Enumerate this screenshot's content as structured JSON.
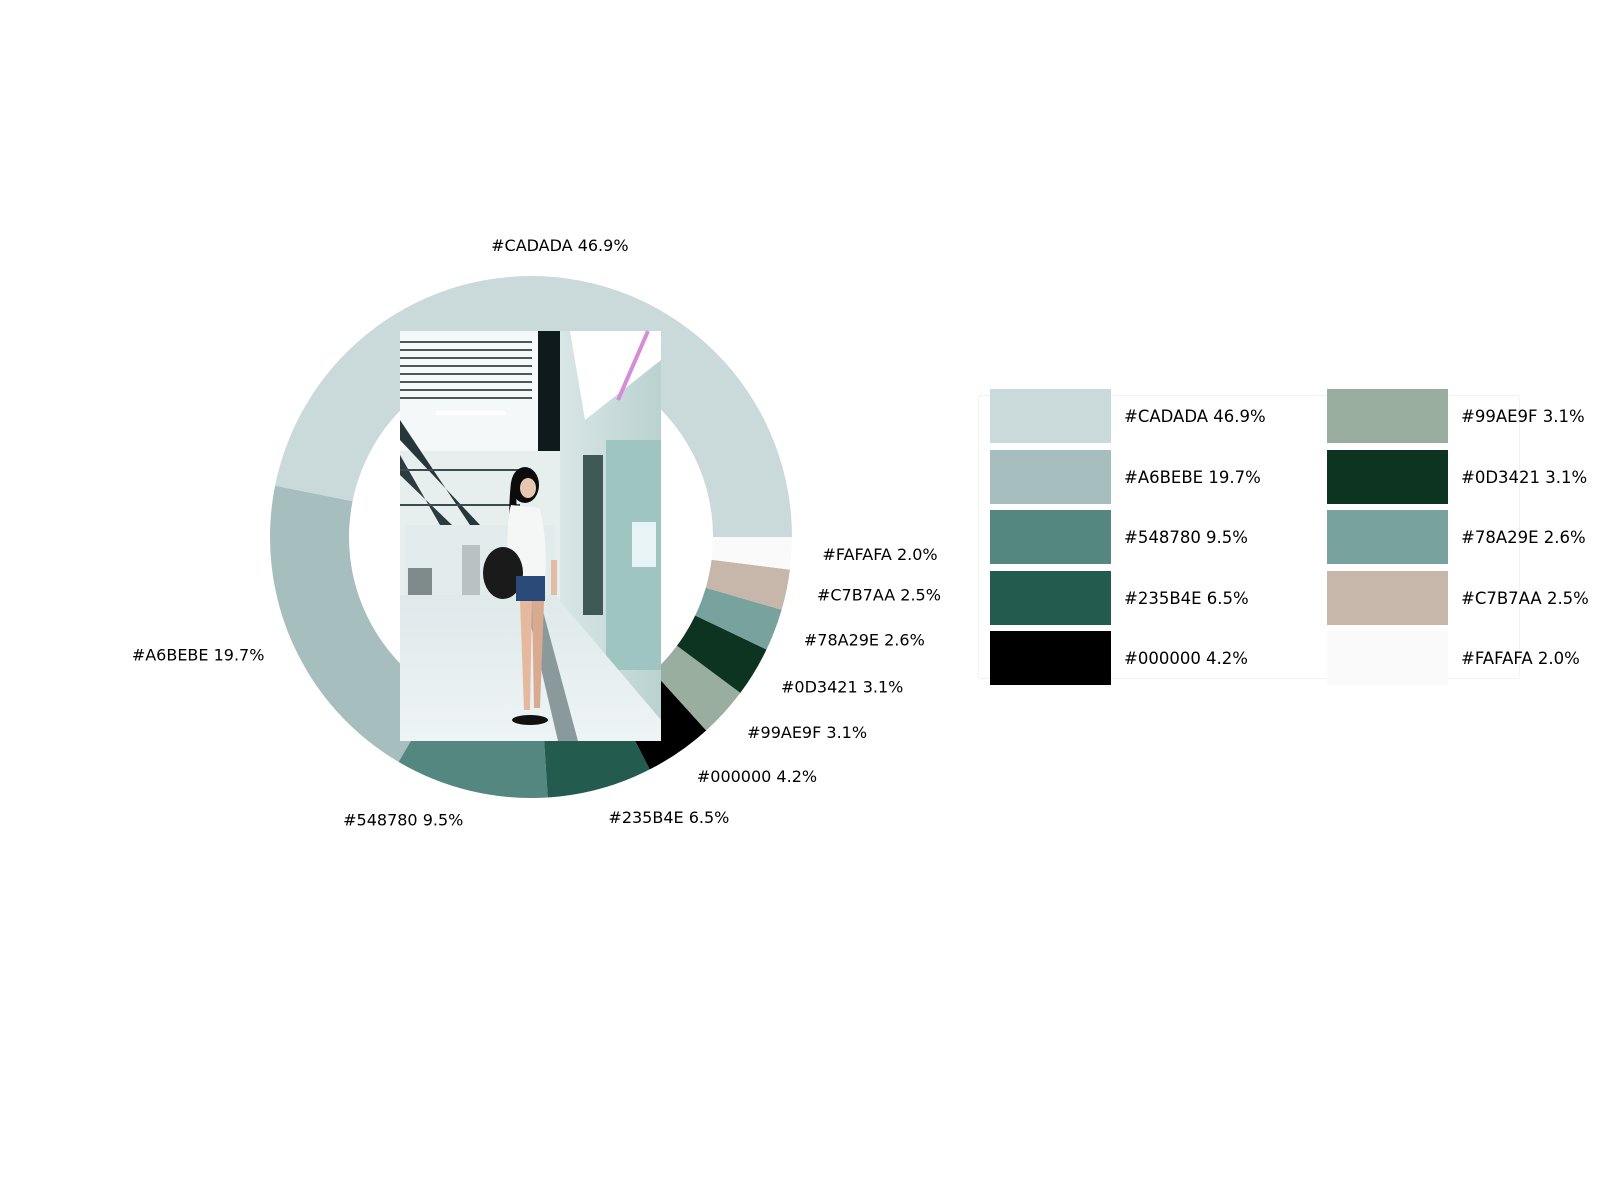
{
  "chart_data": {
    "type": "pie",
    "style": "donut",
    "slices": [
      {
        "label": "#CADADA 46.9%",
        "color": "#CADADA",
        "value": 46.9
      },
      {
        "label": "#A6BEBE 19.7%",
        "color": "#A6BEBE",
        "value": 19.7
      },
      {
        "label": "#548780 9.5%",
        "color": "#548780",
        "value": 9.5
      },
      {
        "label": "#235B4E 6.5%",
        "color": "#235B4E",
        "value": 6.5
      },
      {
        "label": "#000000 4.2%",
        "color": "#000000",
        "value": 4.2
      },
      {
        "label": "#99AE9F 3.1%",
        "color": "#99AE9F",
        "value": 3.1
      },
      {
        "label": "#0D3421 3.1%",
        "color": "#0D3421",
        "value": 3.1
      },
      {
        "label": "#78A29E 2.6%",
        "color": "#78A29E",
        "value": 2.6
      },
      {
        "label": "#C7B7AA 2.5%",
        "color": "#C7B7AA",
        "value": 2.5
      },
      {
        "label": "#FAFAFA 2.0%",
        "color": "#FAFAFA",
        "value": 2.0
      }
    ],
    "legend": {
      "placement": "right",
      "columns": 2,
      "entries": [
        "#CADADA 46.9%",
        "#A6BEBE 19.7%",
        "#548780 9.5%",
        "#235B4E 6.5%",
        "#000000 4.2%",
        "#99AE9F 3.1%",
        "#0D3421 3.1%",
        "#78A29E 2.6%",
        "#C7B7AA 2.5%",
        "#FAFAFA 2.0%"
      ]
    },
    "center_image": "photo: girl with long black hair, white shirt and backpack standing on a subway platform"
  }
}
